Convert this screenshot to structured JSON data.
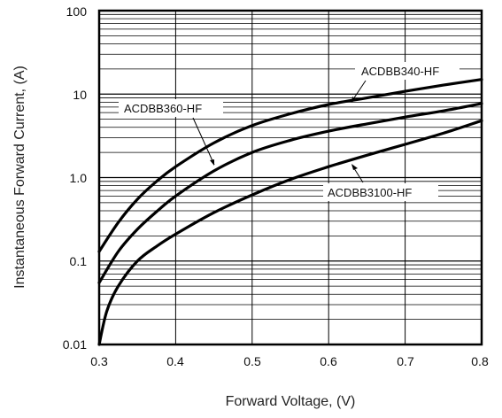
{
  "chart_data": {
    "type": "line",
    "title": "",
    "xlabel": "Forward Voltage, (V)",
    "ylabel": "Instantaneous Forward Current, (A)",
    "xlim": [
      0.3,
      0.8
    ],
    "ylim": [
      0.01,
      100
    ],
    "yscale": "log",
    "grid": true,
    "x_tick_labels": [
      "0.3",
      "0.4",
      "0.5",
      "0.6",
      "0.7",
      "0.8"
    ],
    "y_tick_labels": [
      "0.01",
      "0.1",
      "1.0",
      "10",
      "100"
    ],
    "series": [
      {
        "name": "ACDBB340-HF",
        "x": [
          0.3,
          0.325,
          0.35,
          0.375,
          0.4,
          0.45,
          0.5,
          0.55,
          0.6,
          0.65,
          0.7,
          0.75,
          0.8
        ],
        "y": [
          0.13,
          0.29,
          0.55,
          0.9,
          1.35,
          2.6,
          4.2,
          5.8,
          7.5,
          9.0,
          10.8,
          12.8,
          15.0
        ]
      },
      {
        "name": "ACDBB360-HF",
        "x": [
          0.3,
          0.325,
          0.35,
          0.375,
          0.4,
          0.45,
          0.5,
          0.55,
          0.6,
          0.65,
          0.7,
          0.75,
          0.8
        ],
        "y": [
          0.055,
          0.13,
          0.24,
          0.39,
          0.6,
          1.2,
          2.0,
          2.8,
          3.6,
          4.4,
          5.3,
          6.3,
          7.7
        ]
      },
      {
        "name": "ACDBB3100-HF",
        "x": [
          0.3,
          0.31,
          0.325,
          0.35,
          0.375,
          0.4,
          0.45,
          0.5,
          0.55,
          0.6,
          0.65,
          0.7,
          0.75,
          0.8
        ],
        "y": [
          0.01,
          0.025,
          0.05,
          0.1,
          0.15,
          0.21,
          0.38,
          0.62,
          0.95,
          1.35,
          1.85,
          2.5,
          3.4,
          4.8
        ]
      }
    ]
  }
}
